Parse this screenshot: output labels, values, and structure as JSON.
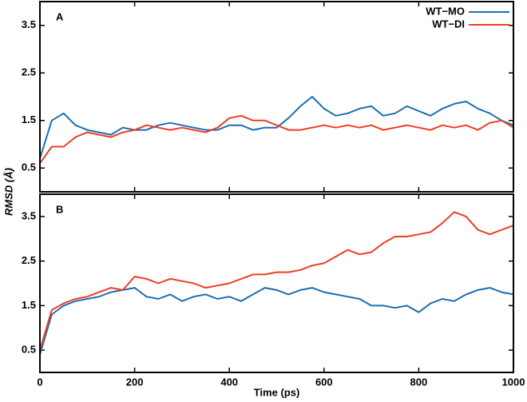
{
  "ylabel": "RMSD (Å)",
  "chart_data": [
    {
      "type": "line",
      "label": "A",
      "legend": "top-right",
      "x": [
        0,
        25,
        50,
        75,
        100,
        125,
        150,
        175,
        200,
        225,
        250,
        275,
        300,
        325,
        350,
        375,
        400,
        425,
        450,
        475,
        500,
        525,
        550,
        575,
        600,
        625,
        650,
        675,
        700,
        725,
        750,
        775,
        800,
        825,
        850,
        875,
        900,
        925,
        950,
        975,
        1000
      ],
      "xlim": [
        0,
        1000
      ],
      "xticks": [
        0,
        200,
        400,
        600,
        800,
        1000
      ],
      "ylim": [
        0,
        4
      ],
      "yticks": [
        0.5,
        1.5,
        2.5,
        3.5
      ],
      "series": [
        {
          "name": "WT−MO",
          "color": "#1a6fb5",
          "values": [
            0.7,
            1.5,
            1.65,
            1.4,
            1.3,
            1.25,
            1.2,
            1.35,
            1.3,
            1.3,
            1.4,
            1.45,
            1.4,
            1.35,
            1.3,
            1.3,
            1.4,
            1.4,
            1.3,
            1.35,
            1.35,
            1.55,
            1.8,
            2.0,
            1.75,
            1.6,
            1.65,
            1.75,
            1.8,
            1.6,
            1.65,
            1.8,
            1.7,
            1.6,
            1.75,
            1.85,
            1.9,
            1.75,
            1.65,
            1.5,
            1.4
          ]
        },
        {
          "name": "WT−DI",
          "color": "#f03c24",
          "values": [
            0.6,
            0.95,
            0.95,
            1.15,
            1.25,
            1.2,
            1.15,
            1.25,
            1.3,
            1.4,
            1.35,
            1.3,
            1.35,
            1.3,
            1.25,
            1.35,
            1.55,
            1.6,
            1.5,
            1.5,
            1.4,
            1.3,
            1.3,
            1.35,
            1.4,
            1.35,
            1.4,
            1.35,
            1.4,
            1.3,
            1.35,
            1.4,
            1.35,
            1.3,
            1.4,
            1.35,
            1.4,
            1.3,
            1.45,
            1.5,
            1.35
          ]
        }
      ]
    },
    {
      "type": "line",
      "label": "B",
      "xlabel": "Time (ps)",
      "x": [
        0,
        25,
        50,
        75,
        100,
        125,
        150,
        175,
        200,
        225,
        250,
        275,
        300,
        325,
        350,
        375,
        400,
        425,
        450,
        475,
        500,
        525,
        550,
        575,
        600,
        625,
        650,
        675,
        700,
        725,
        750,
        775,
        800,
        825,
        850,
        875,
        900,
        925,
        950,
        975,
        1000
      ],
      "xlim": [
        0,
        1000
      ],
      "xticks": [
        0,
        200,
        400,
        600,
        800,
        1000
      ],
      "ylim": [
        0,
        4
      ],
      "yticks": [
        0.5,
        1.5,
        2.5,
        3.5
      ],
      "series": [
        {
          "color": "#1a6fb5",
          "values": [
            0.4,
            1.3,
            1.5,
            1.6,
            1.65,
            1.7,
            1.8,
            1.85,
            1.9,
            1.7,
            1.65,
            1.75,
            1.6,
            1.7,
            1.75,
            1.65,
            1.7,
            1.6,
            1.75,
            1.9,
            1.85,
            1.75,
            1.85,
            1.9,
            1.8,
            1.75,
            1.7,
            1.65,
            1.5,
            1.5,
            1.45,
            1.5,
            1.35,
            1.55,
            1.65,
            1.6,
            1.75,
            1.85,
            1.9,
            1.8,
            1.75
          ]
        },
        {
          "color": "#f03c24",
          "values": [
            0.5,
            1.4,
            1.55,
            1.65,
            1.7,
            1.8,
            1.9,
            1.85,
            2.15,
            2.1,
            2.0,
            2.1,
            2.05,
            2.0,
            1.9,
            1.95,
            2.0,
            2.1,
            2.2,
            2.2,
            2.25,
            2.25,
            2.3,
            2.4,
            2.45,
            2.6,
            2.75,
            2.65,
            2.7,
            2.9,
            3.05,
            3.05,
            3.1,
            3.15,
            3.35,
            3.6,
            3.5,
            3.2,
            3.1,
            3.2,
            3.3
          ]
        }
      ]
    }
  ]
}
